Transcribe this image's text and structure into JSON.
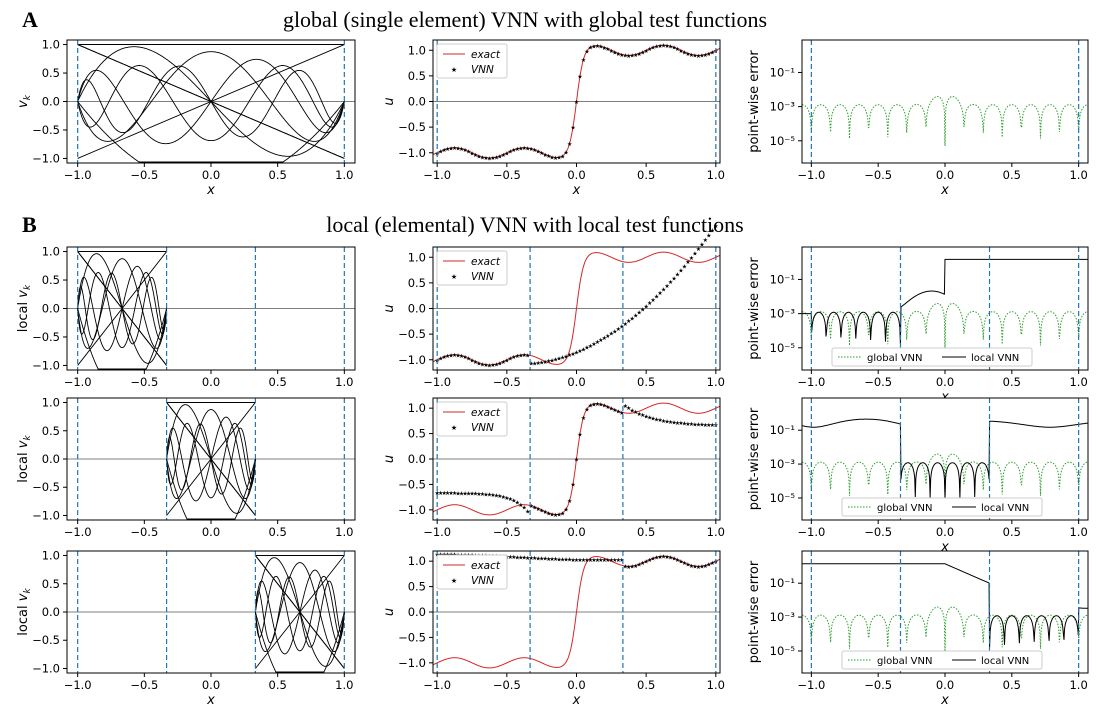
{
  "figure": {
    "panel_a": {
      "letter": "A",
      "title": "global (single element) VNN with global test functions"
    },
    "panel_b": {
      "letter": "B",
      "title": "local (elemental) VNN with local test functions"
    }
  },
  "colors": {
    "exact": "#d62728",
    "vnn": "#000000",
    "global_vnn": "#2ca02c",
    "local_vnn": "#000000",
    "boundary": "#1f77b4"
  },
  "chart_data": [
    {
      "id": "A1",
      "type": "line",
      "xlabel": "x",
      "ylabel": "v_k",
      "xlim": [
        -1.08,
        1.08
      ],
      "ylim": [
        -1.08,
        1.08
      ],
      "xticks": [
        "−1.0",
        "−0.5",
        "0.0",
        "0.5",
        "1.0"
      ],
      "yticks": [
        "1.0",
        "0.5",
        "0.0",
        "−0.5",
        "−1.0"
      ],
      "vlines": [
        -1,
        1
      ],
      "element": [
        -1,
        1
      ],
      "test_functions": 6
    },
    {
      "id": "A2",
      "type": "line",
      "xlabel": "x",
      "ylabel": "u",
      "xlim": [
        -1.03,
        1.03
      ],
      "ylim": [
        -1.2,
        1.2
      ],
      "xticks": [
        "−1.0",
        "−0.5",
        "0.0",
        "0.5",
        "1.0"
      ],
      "yticks": [
        "1.0",
        "0.5",
        "0.0",
        "−0.5",
        "−1.0"
      ],
      "vlines": [
        -1,
        1
      ],
      "legend": [
        "exact",
        "VNN"
      ],
      "legend_position": "upper-left",
      "vnn_fit": "exact"
    },
    {
      "id": "A3",
      "type": "line",
      "xlabel": "x",
      "ylabel": "point-wise error",
      "yscale": "log",
      "xlim": [
        -1.07,
        1.07
      ],
      "ylim_log10": [
        -6.3,
        0.9
      ],
      "xticks": [
        "−1.0",
        "−0.5",
        "0.0",
        "0.5",
        "1.0"
      ],
      "yticks": [
        "10⁻¹",
        "10⁻³",
        "10⁻⁵"
      ],
      "vlines": [
        -1,
        1
      ],
      "series": [
        {
          "values": "global VNN error, about 1e-3 with dips"
        }
      ]
    },
    {
      "id": "B1",
      "type": "line",
      "xlabel": "",
      "ylabel": "local v_k",
      "xlim": [
        -1.08,
        1.08
      ],
      "ylim": [
        -1.08,
        1.08
      ],
      "xticks": [
        "−1.0",
        "−0.5",
        "0.0",
        "0.5",
        "1.0"
      ],
      "yticks": [
        "1.0",
        "0.5",
        "0.0",
        "−0.5",
        "−1.0"
      ],
      "vlines": [
        -1,
        -0.333,
        0.333,
        1
      ],
      "element": [
        -1,
        -0.333
      ],
      "test_functions": 6
    },
    {
      "id": "B2",
      "type": "line",
      "xlabel": "",
      "ylabel": "u",
      "xlim": [
        -1.03,
        1.03
      ],
      "ylim": [
        -1.2,
        1.2
      ],
      "xticks": [
        "−1.0",
        "−0.5",
        "0.0",
        "0.5",
        "1.0"
      ],
      "yticks": [
        "1.0",
        "0.5",
        "0.0",
        "−0.5",
        "−1.0"
      ],
      "vlines": [
        -1,
        -0.333,
        0.333,
        1
      ],
      "legend": [
        "exact",
        "VNN"
      ],
      "legend_position": "upper-left",
      "vnn_fit": "elem1"
    },
    {
      "id": "B3",
      "type": "line",
      "xlabel": "x",
      "ylabel": "point-wise error",
      "yscale": "log",
      "xlim": [
        -1.07,
        1.07
      ],
      "ylim_log10": [
        -6.3,
        0.9
      ],
      "xticks": [
        "−1.0",
        "−0.5",
        "0.0",
        "0.5",
        "1.0"
      ],
      "yticks": [
        "10⁻¹",
        "10⁻³",
        "10⁻⁵"
      ],
      "vlines": [
        -1,
        -0.333,
        0.333,
        1
      ],
      "series": [
        {
          "name": "global VNN"
        },
        {
          "name": "local VNN"
        }
      ],
      "legend_position": "lower-center",
      "fit_element": 1
    },
    {
      "id": "B4",
      "type": "line",
      "xlabel": "",
      "ylabel": "local v_k",
      "xlim": [
        -1.08,
        1.08
      ],
      "ylim": [
        -1.08,
        1.08
      ],
      "xticks": [
        "−1.0",
        "−0.5",
        "0.0",
        "0.5",
        "1.0"
      ],
      "yticks": [
        "1.0",
        "0.5",
        "0.0",
        "−0.5",
        "−1.0"
      ],
      "vlines": [
        -1,
        -0.333,
        0.333,
        1
      ],
      "element": [
        -0.333,
        0.333
      ],
      "test_functions": 6
    },
    {
      "id": "B5",
      "type": "line",
      "xlabel": "",
      "ylabel": "u",
      "xlim": [
        -1.03,
        1.03
      ],
      "ylim": [
        -1.2,
        1.2
      ],
      "xticks": [
        "−1.0",
        "−0.5",
        "0.0",
        "0.5",
        "1.0"
      ],
      "yticks": [
        "1.0",
        "0.5",
        "0.0",
        "−0.5",
        "−1.0"
      ],
      "vlines": [
        -1,
        -0.333,
        0.333,
        1
      ],
      "legend": [
        "exact",
        "VNN"
      ],
      "legend_position": "upper-left",
      "vnn_fit": "elem2"
    },
    {
      "id": "B6",
      "type": "line",
      "xlabel": "x",
      "ylabel": "point-wise error",
      "yscale": "log",
      "xlim": [
        -1.07,
        1.07
      ],
      "ylim_log10": [
        -6.3,
        0.9
      ],
      "xticks": [
        "−1.0",
        "−0.5",
        "0.0",
        "0.5",
        "1.0"
      ],
      "yticks": [
        "10⁻¹",
        "10⁻³",
        "10⁻⁵"
      ],
      "vlines": [
        -1,
        -0.333,
        0.333,
        1
      ],
      "series": [
        {
          "name": "global VNN"
        },
        {
          "name": "local VNN"
        }
      ],
      "legend_position": "lower-right",
      "fit_element": 2
    },
    {
      "id": "B7",
      "type": "line",
      "xlabel": "x",
      "ylabel": "local v_k",
      "xlim": [
        -1.08,
        1.08
      ],
      "ylim": [
        -1.08,
        1.08
      ],
      "xticks": [
        "−1.0",
        "−0.5",
        "0.0",
        "0.5",
        "1.0"
      ],
      "yticks": [
        "1.0",
        "0.5",
        "0.0",
        "−0.5",
        "−1.0"
      ],
      "vlines": [
        -1,
        -0.333,
        0.333,
        1
      ],
      "element": [
        0.333,
        1
      ],
      "test_functions": 6
    },
    {
      "id": "B8",
      "type": "line",
      "xlabel": "x",
      "ylabel": "u",
      "xlim": [
        -1.03,
        1.03
      ],
      "ylim": [
        -1.2,
        1.2
      ],
      "xticks": [
        "−1.0",
        "−0.5",
        "0.0",
        "0.5",
        "1.0"
      ],
      "yticks": [
        "1.0",
        "0.5",
        "0.0",
        "−0.5",
        "−1.0"
      ],
      "vlines": [
        -1,
        -0.333,
        0.333,
        1
      ],
      "legend": [
        "exact",
        "VNN"
      ],
      "legend_position": "upper-left",
      "vnn_fit": "elem3"
    },
    {
      "id": "B9",
      "type": "line",
      "xlabel": "x",
      "ylabel": "point-wise error",
      "yscale": "log",
      "xlim": [
        -1.07,
        1.07
      ],
      "ylim_log10": [
        -6.3,
        0.9
      ],
      "xticks": [
        "−1.0",
        "−0.5",
        "0.0",
        "0.5",
        "1.0"
      ],
      "yticks": [
        "10⁻¹",
        "10⁻³",
        "10⁻⁵"
      ],
      "vlines": [
        -1,
        -0.333,
        0.333,
        1
      ],
      "series": [
        {
          "name": "global VNN"
        },
        {
          "name": "local VNN"
        }
      ],
      "legend_position": "lower-right",
      "fit_element": 3
    }
  ]
}
